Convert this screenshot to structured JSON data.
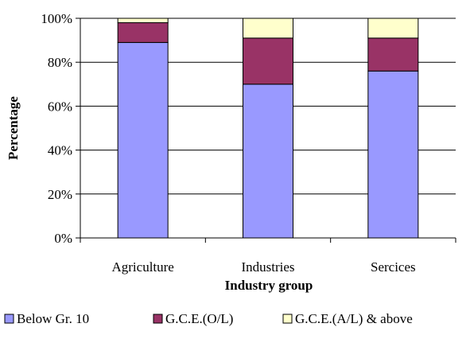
{
  "chart_data": {
    "type": "bar",
    "stacked": true,
    "percent": true,
    "categories": [
      "Agriculture",
      "Industries",
      "Sercices"
    ],
    "series": [
      {
        "name": "Below Gr. 10",
        "color": "#9999ff",
        "values": [
          89,
          70,
          76
        ]
      },
      {
        "name": "G.C.E.(O/L)",
        "color": "#993366",
        "values": [
          9,
          21,
          15
        ]
      },
      {
        "name": "G.C.E.(A/L) & above",
        "color": "#ffffcc",
        "values": [
          2,
          9,
          9
        ]
      }
    ],
    "xlabel": "Industry group",
    "ylabel": "Percentage",
    "ylim": [
      0,
      100
    ],
    "yticks": [
      "0%",
      "20%",
      "40%",
      "60%",
      "80%",
      "100%"
    ],
    "legend_position": "bottom",
    "grid": true
  }
}
